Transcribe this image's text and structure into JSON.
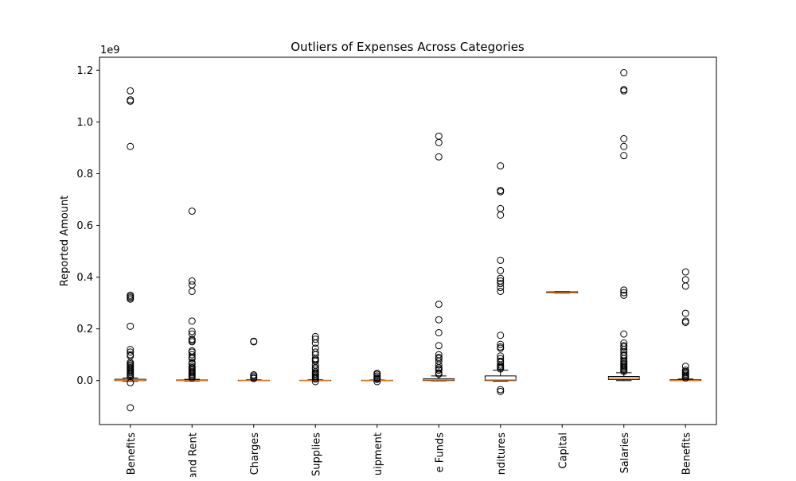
{
  "chart_data": {
    "type": "box",
    "title": "Outliers of Expenses Across Categories",
    "ylabel": "Reported Amount",
    "xlabel": "",
    "scale_label": "1e9",
    "ylim": [
      -0.17,
      1.25
    ],
    "yticks": [
      {
        "value": 0.0,
        "label": "0.0"
      },
      {
        "value": 0.2,
        "label": "0.2"
      },
      {
        "value": 0.4,
        "label": "0.4"
      },
      {
        "value": 0.6,
        "label": "0.6"
      },
      {
        "value": 0.8,
        "label": "0.8"
      },
      {
        "value": 1.0,
        "label": "1.0"
      },
      {
        "value": 1.2,
        "label": "1.2"
      }
    ],
    "grid": false,
    "colors": {
      "median": "#e07b28",
      "box": "#000000",
      "flier": "#000000"
    },
    "categories": [
      "Benefits",
      "and Rent",
      "Charges",
      "Supplies",
      "uipment",
      "e Funds",
      "nditures",
      "Capital",
      "Salaries",
      "Benefits"
    ],
    "boxes": [
      {
        "q1": 0.0,
        "median": 0.0,
        "q3": 0.005,
        "whisker_low": -0.003,
        "whisker_high": 0.01,
        "fliers": [
          1.12,
          1.085,
          1.08,
          0.905,
          0.33,
          0.325,
          0.32,
          0.315,
          0.21,
          0.12,
          0.11,
          0.1,
          0.095,
          0.07,
          0.065,
          0.06,
          0.055,
          0.05,
          0.045,
          0.04,
          0.035,
          0.03,
          0.025,
          0.02,
          0.015,
          -0.008,
          -0.105
        ]
      },
      {
        "q1": 0.0,
        "median": 0.0,
        "q3": 0.002,
        "whisker_low": -0.002,
        "whisker_high": 0.005,
        "fliers": [
          0.655,
          0.385,
          0.37,
          0.345,
          0.23,
          0.19,
          0.18,
          0.16,
          0.155,
          0.15,
          0.115,
          0.11,
          0.1,
          0.09,
          0.085,
          0.07,
          0.065,
          0.055,
          0.05,
          0.045,
          0.04,
          0.035,
          0.03,
          0.025,
          0.02,
          0.015,
          0.01
        ]
      },
      {
        "q1": 0.0,
        "median": 0.0,
        "q3": 0.001,
        "whisker_low": 0.0,
        "whisker_high": 0.003,
        "fliers": [
          0.152,
          0.15,
          0.022,
          0.018,
          0.012,
          0.008
        ]
      },
      {
        "q1": 0.0,
        "median": 0.0,
        "q3": 0.001,
        "whisker_low": -0.001,
        "whisker_high": 0.003,
        "fliers": [
          0.17,
          0.16,
          0.145,
          0.125,
          0.11,
          0.1,
          0.085,
          0.08,
          0.075,
          0.06,
          0.05,
          0.045,
          0.035,
          0.03,
          0.025,
          0.02,
          0.015,
          0.01,
          0.006,
          -0.004
        ]
      },
      {
        "q1": 0.0,
        "median": 0.0,
        "q3": 0.001,
        "whisker_low": -0.001,
        "whisker_high": 0.002,
        "fliers": [
          0.028,
          0.024,
          0.018,
          0.012,
          0.008,
          0.005,
          -0.004
        ]
      },
      {
        "q1": 0.0,
        "median": 0.002,
        "q3": 0.007,
        "whisker_low": -0.001,
        "whisker_high": 0.018,
        "fliers": [
          0.945,
          0.92,
          0.865,
          0.295,
          0.235,
          0.185,
          0.135,
          0.1,
          0.09,
          0.085,
          0.075,
          0.06,
          0.05,
          0.045,
          0.04,
          0.03,
          0.025
        ]
      },
      {
        "q1": 0.0,
        "median": 0.002,
        "q3": 0.018,
        "whisker_low": -0.002,
        "whisker_high": 0.04,
        "fliers": [
          0.83,
          0.735,
          0.73,
          0.665,
          0.64,
          0.465,
          0.425,
          0.395,
          0.385,
          0.375,
          0.36,
          0.345,
          0.175,
          0.14,
          0.13,
          0.125,
          0.095,
          0.085,
          0.075,
          0.07,
          0.06,
          0.055,
          0.05,
          0.045,
          -0.035,
          -0.042
        ]
      },
      {
        "q1": 0.339,
        "median": 0.34,
        "q3": 0.343,
        "whisker_low": 0.338,
        "whisker_high": 0.344,
        "fliers": []
      },
      {
        "q1": 0.004,
        "median": 0.01,
        "q3": 0.016,
        "whisker_low": 0.0,
        "whisker_high": 0.03,
        "fliers": [
          1.19,
          1.125,
          1.12,
          0.935,
          0.905,
          0.87,
          0.35,
          0.34,
          0.33,
          0.18,
          0.145,
          0.135,
          0.13,
          0.12,
          0.11,
          0.1,
          0.095,
          0.085,
          0.075,
          0.07,
          0.065,
          0.06,
          0.055,
          0.05,
          0.045,
          0.04,
          0.035
        ]
      },
      {
        "q1": 0.0,
        "median": 0.0,
        "q3": 0.003,
        "whisker_low": -0.001,
        "whisker_high": 0.006,
        "fliers": [
          0.42,
          0.39,
          0.365,
          0.26,
          0.23,
          0.225,
          0.055,
          0.04,
          0.035,
          0.03,
          0.025,
          0.02,
          0.015,
          0.01
        ]
      }
    ]
  }
}
